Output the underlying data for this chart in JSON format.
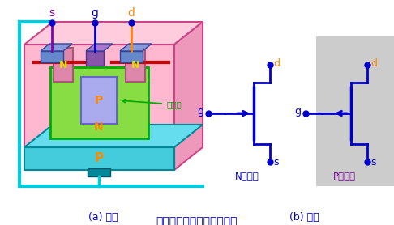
{
  "title": "结型场效应管的结构和符号",
  "subtitle_a": "(a) 结构",
  "subtitle_b": "(b) 符号",
  "bg_color": "#ffffff",
  "label_s": "s",
  "label_g": "g",
  "label_d": "d",
  "label_N": "N",
  "label_P": "P",
  "label_depletion": "耗尽层",
  "label_Nchan": "N沟道管",
  "label_Pchan": "P沟道管",
  "color_blue": "#0000cc",
  "color_purple": "#8800aa",
  "color_orange": "#ff8800",
  "color_green": "#00aa00",
  "color_cyan": "#00ccdd",
  "color_red": "#cc0000",
  "color_teal_dark": "#008899",
  "color_yellow_n": "#dddd00"
}
